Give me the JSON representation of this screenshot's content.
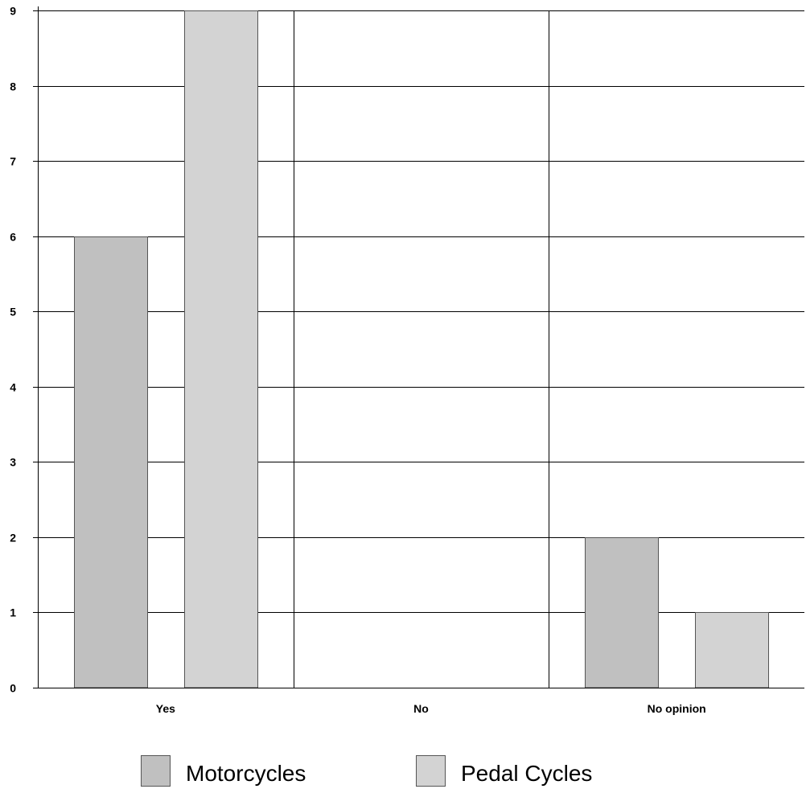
{
  "chart_data": {
    "type": "bar",
    "categories": [
      "Yes",
      "No",
      "No opinion"
    ],
    "series": [
      {
        "name": "Motorcycles",
        "values": [
          6,
          0,
          2
        ],
        "color": "#c0c0c0"
      },
      {
        "name": "Pedal Cycles",
        "values": [
          9,
          0,
          1
        ],
        "color": "#d3d3d3"
      }
    ],
    "y_ticks": [
      "0",
      "1",
      "2",
      "3",
      "4",
      "5",
      "6",
      "7",
      "8",
      "9"
    ],
    "ylim": [
      0,
      9
    ],
    "grid": true,
    "legend_position": "bottom",
    "title": "",
    "xlabel": "",
    "ylabel": ""
  }
}
